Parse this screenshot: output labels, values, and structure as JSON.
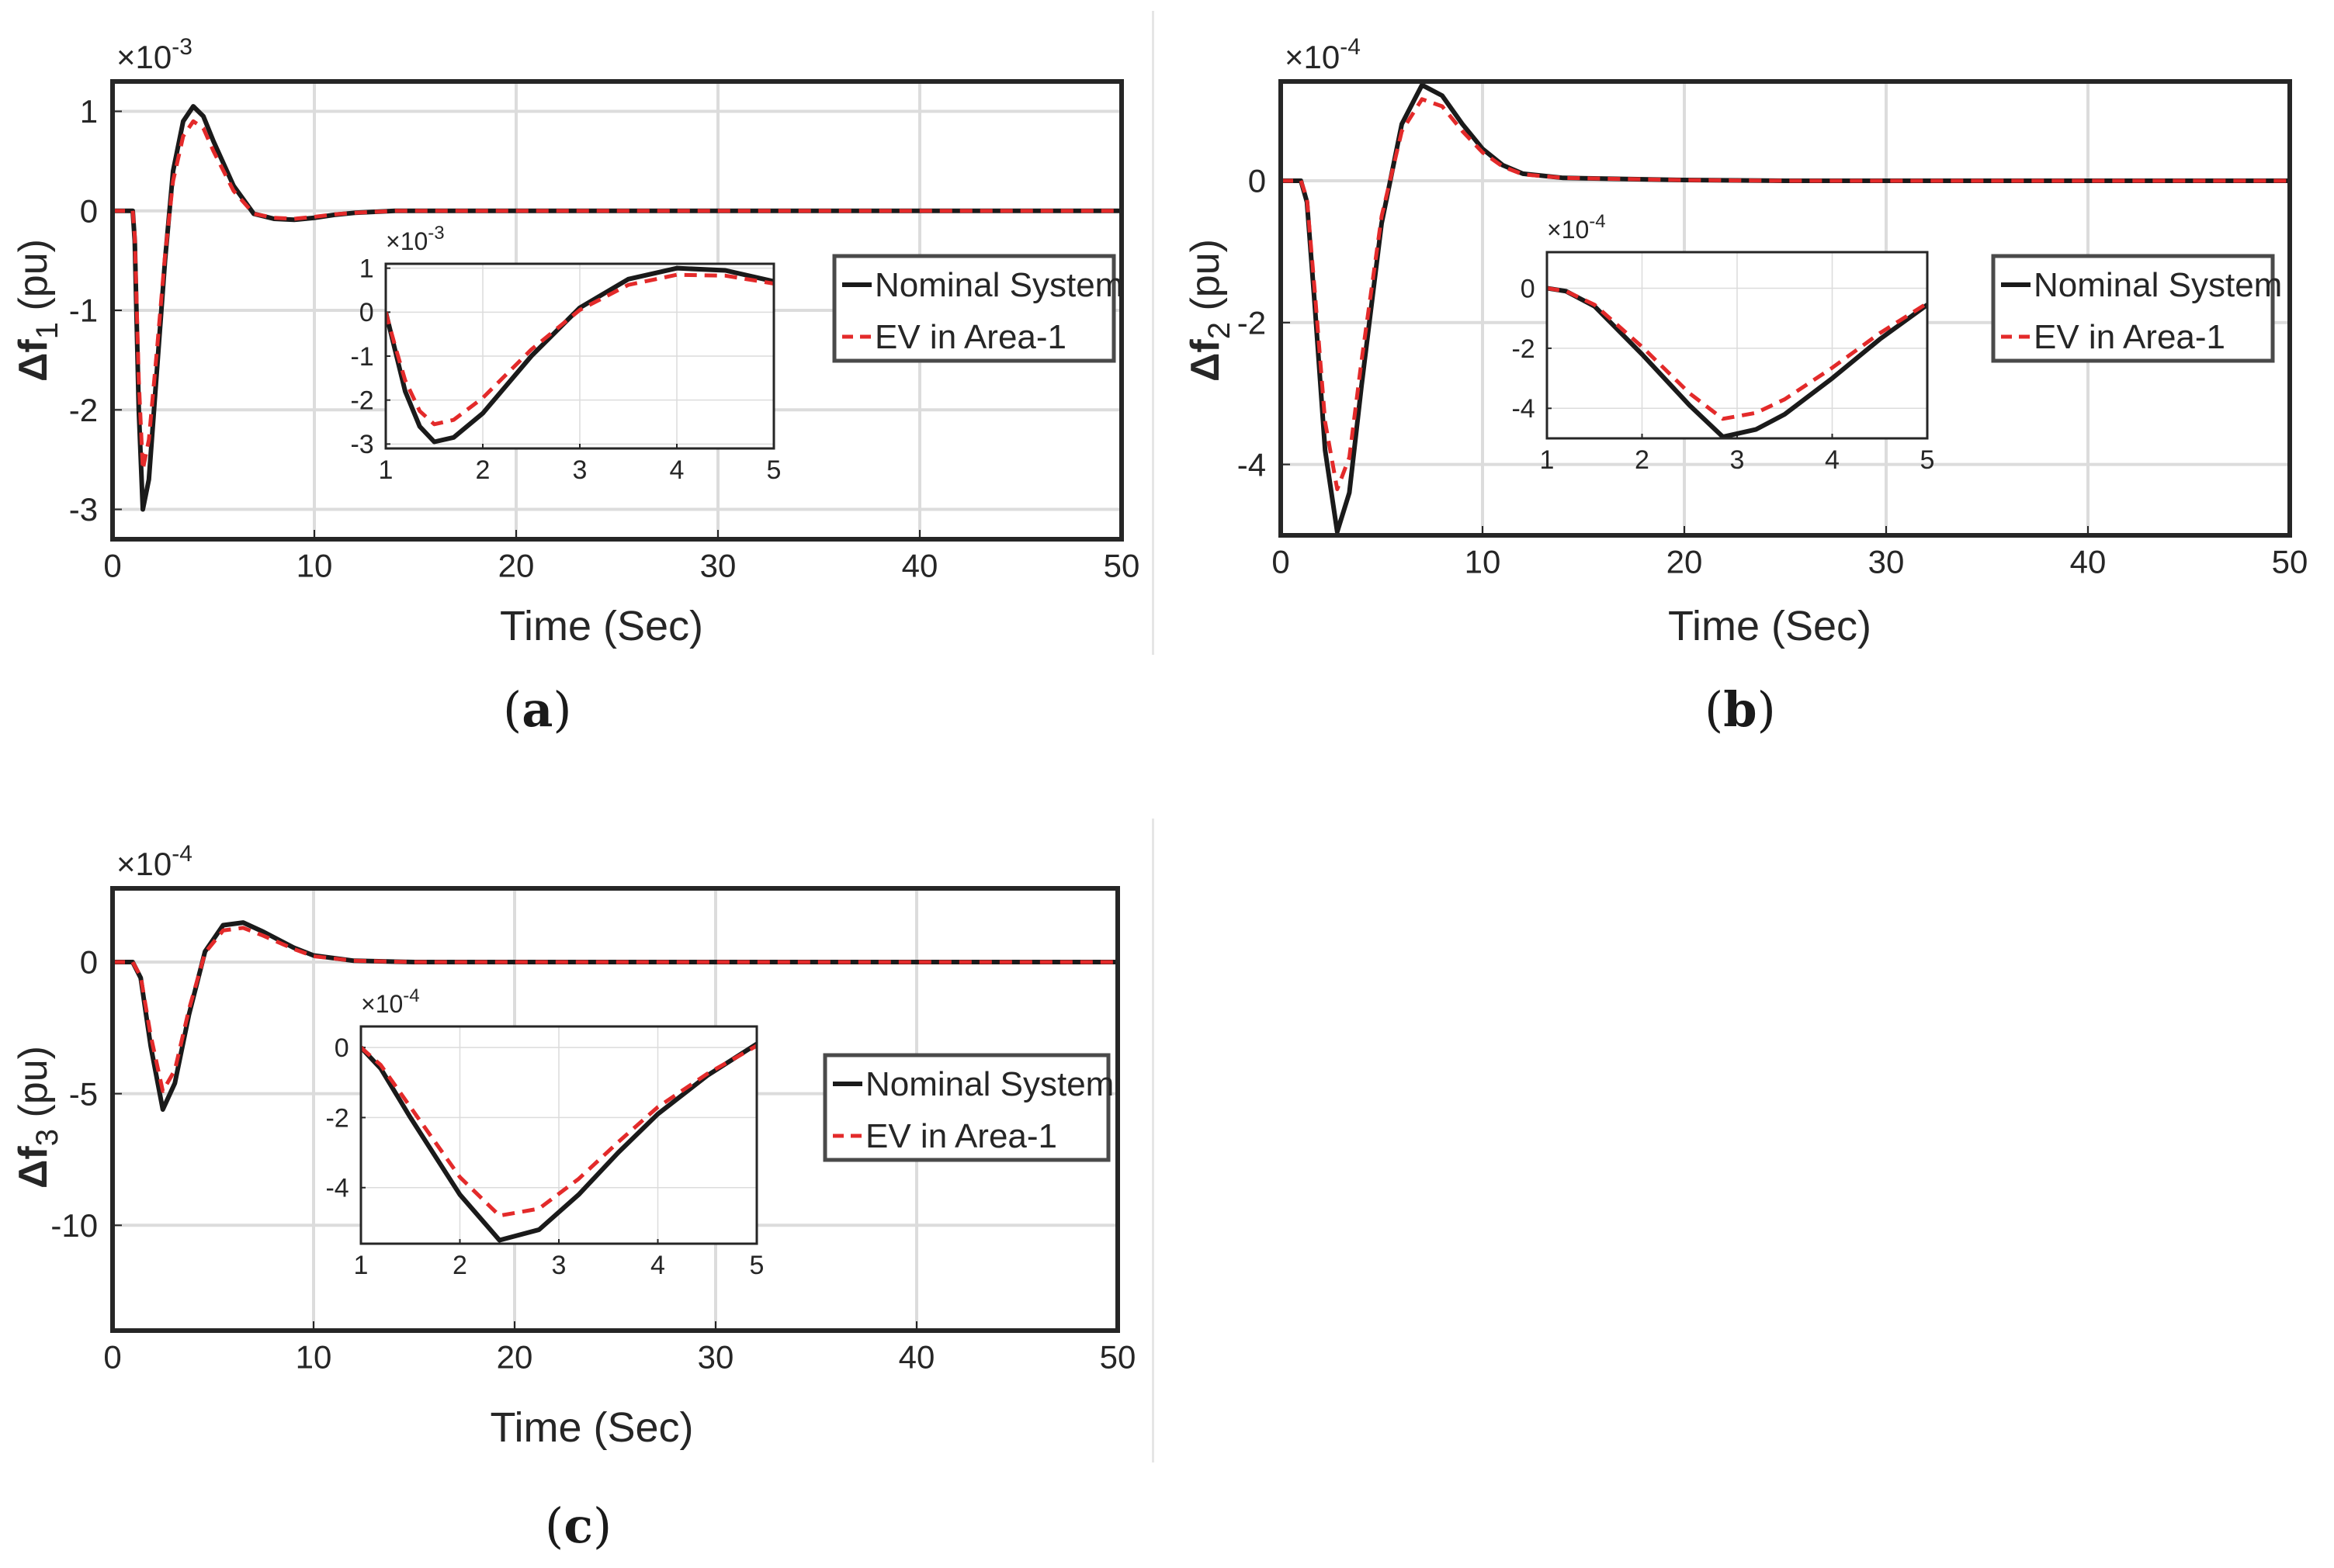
{
  "figure": {
    "captions": [
      "(a)",
      "(b)",
      "(c)"
    ],
    "caption_letters": [
      "a",
      "b",
      "c"
    ]
  },
  "colors": {
    "nominal": "#1a1a1a",
    "ev": "#e32a2a",
    "axis": "#262626",
    "grid": "#dcdcdc"
  },
  "chart_data": [
    {
      "id": "a",
      "type": "line",
      "xlabel": "Time (Sec)",
      "ylabel": "Δf1 (pu)",
      "ylabel_base": "Δf",
      "ylabel_sub": "1",
      "ylabel_unit": "(pu)",
      "exponent_label": "×10",
      "exponent": "-3",
      "xlim": [
        0,
        50
      ],
      "ylim": [
        -3.3,
        1.3
      ],
      "xticks": [
        0,
        10,
        20,
        30,
        40,
        50
      ],
      "yticks": [
        -3,
        -2,
        -1,
        0,
        1
      ],
      "legend": [
        "Nominal System",
        "EV in Area-1"
      ],
      "legend_position": "right-center",
      "series": [
        {
          "name": "Nominal System",
          "style": "solid",
          "points": [
            [
              0,
              0
            ],
            [
              1,
              0
            ],
            [
              1.1,
              -0.3
            ],
            [
              1.3,
              -2.0
            ],
            [
              1.5,
              -3.0
            ],
            [
              1.8,
              -2.7
            ],
            [
              2.2,
              -1.6
            ],
            [
              2.6,
              -0.5
            ],
            [
              3,
              0.4
            ],
            [
              3.5,
              0.9
            ],
            [
              4,
              1.05
            ],
            [
              4.5,
              0.95
            ],
            [
              5,
              0.7
            ],
            [
              6,
              0.25
            ],
            [
              7,
              -0.03
            ],
            [
              8,
              -0.08
            ],
            [
              9,
              -0.09
            ],
            [
              10,
              -0.07
            ],
            [
              11,
              -0.04
            ],
            [
              12,
              -0.02
            ],
            [
              14,
              0.0
            ],
            [
              50,
              0.0
            ]
          ]
        },
        {
          "name": "EV in Area-1",
          "style": "dashed",
          "points": [
            [
              0,
              0
            ],
            [
              1,
              0
            ],
            [
              1.1,
              -0.25
            ],
            [
              1.3,
              -1.7
            ],
            [
              1.5,
              -2.6
            ],
            [
              1.8,
              -2.3
            ],
            [
              2.2,
              -1.4
            ],
            [
              2.6,
              -0.45
            ],
            [
              3,
              0.3
            ],
            [
              3.5,
              0.75
            ],
            [
              4,
              0.9
            ],
            [
              4.5,
              0.83
            ],
            [
              5,
              0.6
            ],
            [
              6,
              0.2
            ],
            [
              7,
              -0.03
            ],
            [
              8,
              -0.07
            ],
            [
              9,
              -0.08
            ],
            [
              10,
              -0.06
            ],
            [
              11,
              -0.035
            ],
            [
              12,
              -0.02
            ],
            [
              14,
              0.0
            ],
            [
              50,
              0.0
            ]
          ]
        }
      ],
      "inset": {
        "exponent_label": "×10",
        "exponent": "-3",
        "xlim": [
          1,
          5
        ],
        "ylim": [
          -3.1,
          1.1
        ],
        "xticks": [
          1,
          2,
          3,
          4,
          5
        ],
        "yticks": [
          -3,
          -2,
          -1,
          0,
          1
        ],
        "series": [
          {
            "name": "Nominal System",
            "points": [
              [
                1,
                0
              ],
              [
                1.1,
                -0.9
              ],
              [
                1.2,
                -1.8
              ],
              [
                1.35,
                -2.6
              ],
              [
                1.5,
                -2.95
              ],
              [
                1.7,
                -2.85
              ],
              [
                2,
                -2.3
              ],
              [
                2.5,
                -1.0
              ],
              [
                3,
                0.1
              ],
              [
                3.5,
                0.75
              ],
              [
                4,
                1.0
              ],
              [
                4.5,
                0.95
              ],
              [
                5,
                0.7
              ]
            ]
          },
          {
            "name": "EV in Area-1",
            "points": [
              [
                1,
                0
              ],
              [
                1.1,
                -0.8
              ],
              [
                1.2,
                -1.55
              ],
              [
                1.35,
                -2.25
              ],
              [
                1.5,
                -2.55
              ],
              [
                1.7,
                -2.45
              ],
              [
                2,
                -1.95
              ],
              [
                2.5,
                -0.85
              ],
              [
                3,
                0.05
              ],
              [
                3.5,
                0.62
              ],
              [
                4,
                0.85
              ],
              [
                4.5,
                0.83
              ],
              [
                5,
                0.65
              ]
            ]
          }
        ]
      }
    },
    {
      "id": "b",
      "type": "line",
      "xlabel": "Time (Sec)",
      "ylabel": "Δf2 (pu)",
      "ylabel_base": "Δf",
      "ylabel_sub": "2",
      "ylabel_unit": "(pu)",
      "exponent_label": "×10",
      "exponent": "-4",
      "xlim": [
        0,
        50
      ],
      "ylim": [
        -5,
        1.4
      ],
      "xticks": [
        0,
        10,
        20,
        30,
        40,
        50
      ],
      "yticks": [
        -4,
        -2,
        0
      ],
      "legend": [
        "Nominal System",
        "EV in Area-1"
      ],
      "legend_position": "right-center",
      "series": [
        {
          "name": "Nominal System",
          "style": "solid",
          "points": [
            [
              0,
              0
            ],
            [
              1,
              0
            ],
            [
              1.3,
              -0.3
            ],
            [
              1.7,
              -1.8
            ],
            [
              2.2,
              -3.8
            ],
            [
              2.8,
              -4.95
            ],
            [
              3.4,
              -4.4
            ],
            [
              4,
              -2.9
            ],
            [
              5,
              -0.6
            ],
            [
              6,
              0.8
            ],
            [
              7,
              1.35
            ],
            [
              8,
              1.2
            ],
            [
              9,
              0.8
            ],
            [
              10,
              0.45
            ],
            [
              11,
              0.22
            ],
            [
              12,
              0.1
            ],
            [
              14,
              0.04
            ],
            [
              20,
              0.01
            ],
            [
              25,
              0.0
            ],
            [
              50,
              0.0
            ]
          ]
        },
        {
          "name": "EV in Area-1",
          "style": "dashed",
          "points": [
            [
              0,
              0
            ],
            [
              1,
              0
            ],
            [
              1.3,
              -0.25
            ],
            [
              1.7,
              -1.6
            ],
            [
              2.2,
              -3.4
            ],
            [
              2.8,
              -4.35
            ],
            [
              3.4,
              -3.9
            ],
            [
              4,
              -2.55
            ],
            [
              5,
              -0.5
            ],
            [
              6,
              0.7
            ],
            [
              7,
              1.15
            ],
            [
              8,
              1.05
            ],
            [
              9,
              0.7
            ],
            [
              10,
              0.4
            ],
            [
              11,
              0.2
            ],
            [
              12,
              0.09
            ],
            [
              14,
              0.04
            ],
            [
              20,
              0.01
            ],
            [
              25,
              0.0
            ],
            [
              50,
              0.0
            ]
          ]
        }
      ],
      "inset": {
        "exponent_label": "×10",
        "exponent": "-4",
        "xlim": [
          1,
          5
        ],
        "ylim": [
          -5,
          1.2
        ],
        "xticks": [
          1,
          2,
          3,
          4,
          5
        ],
        "yticks": [
          -4,
          -2,
          0
        ],
        "series": [
          {
            "name": "Nominal System",
            "points": [
              [
                1,
                0
              ],
              [
                1.2,
                -0.1
              ],
              [
                1.5,
                -0.6
              ],
              [
                2,
                -2.2
              ],
              [
                2.5,
                -3.9
              ],
              [
                2.85,
                -4.95
              ],
              [
                3.2,
                -4.7
              ],
              [
                3.5,
                -4.2
              ],
              [
                4,
                -3.0
              ],
              [
                4.5,
                -1.7
              ],
              [
                5,
                -0.55
              ]
            ]
          },
          {
            "name": "EV in Area-1",
            "points": [
              [
                1,
                0
              ],
              [
                1.2,
                -0.1
              ],
              [
                1.5,
                -0.55
              ],
              [
                2,
                -1.95
              ],
              [
                2.5,
                -3.5
              ],
              [
                2.85,
                -4.35
              ],
              [
                3.2,
                -4.15
              ],
              [
                3.5,
                -3.7
              ],
              [
                4,
                -2.65
              ],
              [
                4.5,
                -1.5
              ],
              [
                5,
                -0.5
              ]
            ]
          }
        ]
      }
    },
    {
      "id": "c",
      "type": "line",
      "xlabel": "Time (Sec)",
      "ylabel": "Δf3 (pu)",
      "ylabel_base": "Δf",
      "ylabel_sub": "3",
      "ylabel_unit": "(pu)",
      "exponent_label": "×10",
      "exponent": "-4",
      "xlim": [
        0,
        50
      ],
      "ylim": [
        -14,
        2.8
      ],
      "xticks": [
        0,
        10,
        20,
        30,
        40,
        50
      ],
      "yticks": [
        -10,
        -5,
        0
      ],
      "legend": [
        "Nominal System",
        "EV in Area-1"
      ],
      "legend_position": "right-center",
      "series": [
        {
          "name": "Nominal System",
          "style": "solid",
          "points": [
            [
              0,
              0
            ],
            [
              1,
              0
            ],
            [
              1.4,
              -0.6
            ],
            [
              1.9,
              -3.2
            ],
            [
              2.5,
              -5.6
            ],
            [
              3.1,
              -4.6
            ],
            [
              3.8,
              -2.0
            ],
            [
              4.6,
              0.4
            ],
            [
              5.5,
              1.4
            ],
            [
              6.5,
              1.5
            ],
            [
              7.5,
              1.15
            ],
            [
              9,
              0.55
            ],
            [
              10,
              0.25
            ],
            [
              12,
              0.05
            ],
            [
              15,
              0.0
            ],
            [
              50,
              0.0
            ]
          ]
        },
        {
          "name": "EV in Area-1",
          "style": "dashed",
          "points": [
            [
              0,
              0
            ],
            [
              1,
              0
            ],
            [
              1.4,
              -0.55
            ],
            [
              1.9,
              -2.8
            ],
            [
              2.5,
              -4.9
            ],
            [
              3.1,
              -4.1
            ],
            [
              3.8,
              -1.8
            ],
            [
              4.6,
              0.35
            ],
            [
              5.5,
              1.2
            ],
            [
              6.5,
              1.3
            ],
            [
              7.5,
              1.0
            ],
            [
              9,
              0.5
            ],
            [
              10,
              0.22
            ],
            [
              12,
              0.05
            ],
            [
              15,
              0.0
            ],
            [
              50,
              0.0
            ]
          ]
        }
      ],
      "inset": {
        "exponent_label": "×10",
        "exponent": "-4",
        "xlim": [
          1,
          5
        ],
        "ylim": [
          -5.6,
          0.6
        ],
        "xticks": [
          1,
          2,
          3,
          4,
          5
        ],
        "yticks": [
          -4,
          -2,
          0
        ],
        "series": [
          {
            "name": "Nominal System",
            "points": [
              [
                1,
                0
              ],
              [
                1.2,
                -0.6
              ],
              [
                1.5,
                -2.0
              ],
              [
                2,
                -4.2
              ],
              [
                2.4,
                -5.5
              ],
              [
                2.8,
                -5.2
              ],
              [
                3.2,
                -4.2
              ],
              [
                3.6,
                -3.0
              ],
              [
                4,
                -1.9
              ],
              [
                4.5,
                -0.8
              ],
              [
                5,
                0.1
              ]
            ]
          },
          {
            "name": "EV in Area-1",
            "points": [
              [
                1,
                0
              ],
              [
                1.2,
                -0.5
              ],
              [
                1.5,
                -1.7
              ],
              [
                2,
                -3.7
              ],
              [
                2.4,
                -4.8
              ],
              [
                2.8,
                -4.6
              ],
              [
                3.2,
                -3.75
              ],
              [
                3.6,
                -2.7
              ],
              [
                4,
                -1.7
              ],
              [
                4.5,
                -0.75
              ],
              [
                5,
                0.05
              ]
            ]
          }
        ]
      }
    }
  ]
}
